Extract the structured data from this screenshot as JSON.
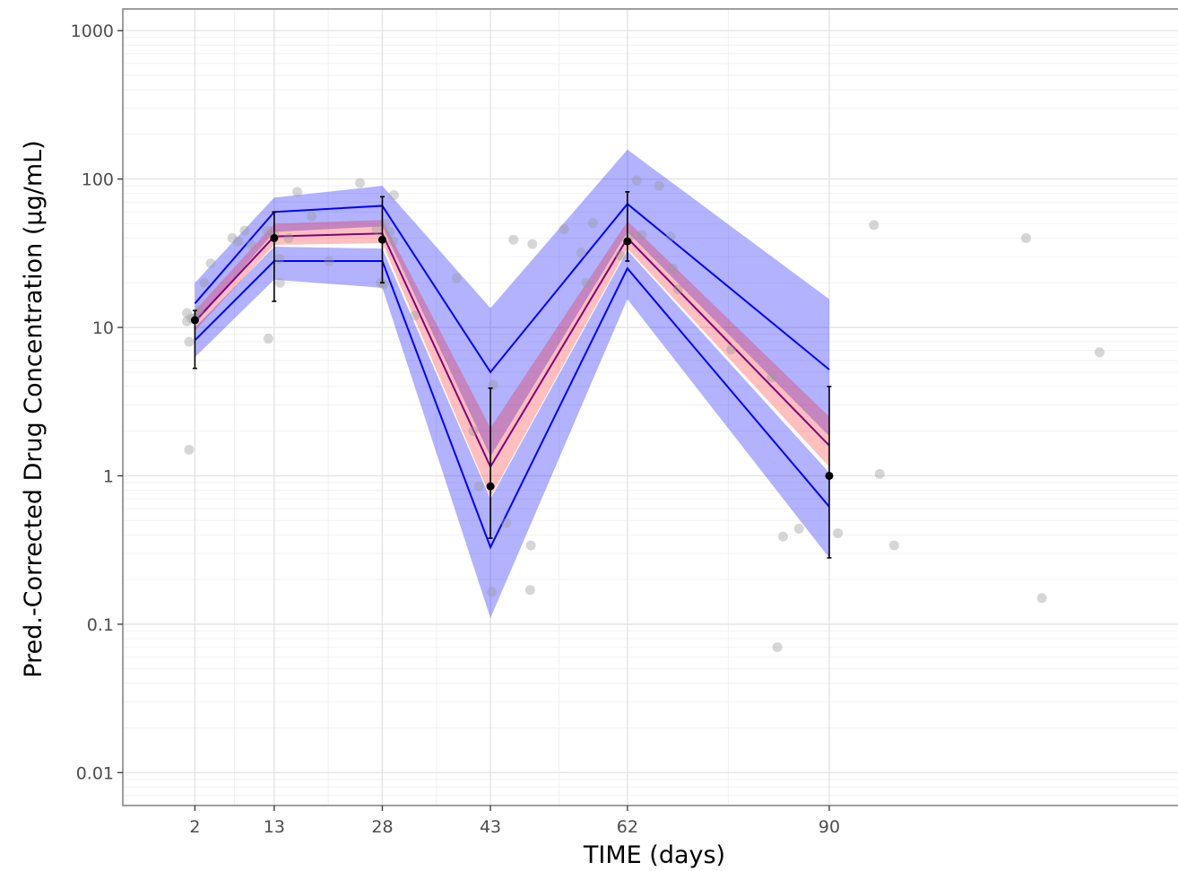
{
  "chart_data": {
    "type": "line",
    "title": "",
    "xlabel": "TIME (days)",
    "ylabel": "Pred.-Corrected Drug Concentration (μg/mL)",
    "y_scale": "log10",
    "ylim": [
      0.006,
      1400
    ],
    "xlim": [
      -8,
      140
    ],
    "x_ticks": [
      2,
      13,
      28,
      43,
      62,
      90
    ],
    "x_tick_labels": [
      "2",
      "13",
      "28",
      "43",
      "62",
      "90"
    ],
    "y_ticks": [
      0.01,
      0.1,
      1,
      10,
      100,
      1000
    ],
    "y_tick_labels": [
      "0.01",
      "0.1",
      "1",
      "10",
      "100",
      "1000"
    ],
    "grid": true,
    "x_bins": [
      2,
      13,
      28,
      43,
      62,
      90
    ],
    "observed_points": [
      [
        0.9,
        11
      ],
      [
        0.9,
        12.5
      ],
      [
        1.2,
        8
      ],
      [
        1.2,
        1.5
      ],
      [
        1.5,
        11.5
      ],
      [
        2,
        11.6
      ],
      [
        2.6,
        13
      ],
      [
        3.3,
        20
      ],
      [
        4.2,
        27
      ],
      [
        7.2,
        40
      ],
      [
        8,
        38
      ],
      [
        8.9,
        45
      ],
      [
        9.8,
        36
      ],
      [
        12,
        45
      ],
      [
        12.2,
        8.4
      ],
      [
        13,
        42
      ],
      [
        13.7,
        29
      ],
      [
        13.8,
        20
      ],
      [
        15,
        40
      ],
      [
        16.2,
        82
      ],
      [
        18.2,
        56
      ],
      [
        20.6,
        28
      ],
      [
        24.9,
        94
      ],
      [
        27.2,
        46
      ],
      [
        27.8,
        20
      ],
      [
        28.2,
        19.5
      ],
      [
        28.4,
        50
      ],
      [
        29,
        44
      ],
      [
        29.5,
        38
      ],
      [
        29.6,
        78
      ],
      [
        32.5,
        12
      ],
      [
        38.3,
        21.5
      ],
      [
        40.6,
        2
      ],
      [
        41.4,
        0.85
      ],
      [
        43.2,
        0.165
      ],
      [
        43.4,
        4.1
      ],
      [
        45.2,
        0.48
      ],
      [
        46.2,
        39
      ],
      [
        48.5,
        0.17
      ],
      [
        48.6,
        0.34
      ],
      [
        48.8,
        36.5
      ],
      [
        53.2,
        46
      ],
      [
        55.6,
        32
      ],
      [
        56.3,
        20
      ],
      [
        57.2,
        50.5
      ],
      [
        61,
        30.5
      ],
      [
        62.3,
        41
      ],
      [
        63.3,
        98
      ],
      [
        64,
        42
      ],
      [
        66.4,
        90
      ],
      [
        68,
        41
      ],
      [
        68.3,
        25
      ],
      [
        69,
        18
      ],
      [
        76.4,
        7.1
      ],
      [
        82,
        4.6
      ],
      [
        82.8,
        0.07
      ],
      [
        83.6,
        0.39
      ],
      [
        85.8,
        0.44
      ],
      [
        91.2,
        0.41
      ],
      [
        96.2,
        49
      ],
      [
        97,
        1.03
      ],
      [
        99,
        0.34
      ],
      [
        117.3,
        40
      ],
      [
        119.5,
        0.15
      ],
      [
        127.5,
        6.8
      ]
    ],
    "observed_median": [
      11.2,
      40,
      39,
      0.85,
      38,
      1.0
    ],
    "observed_error_bars": [
      [
        5.3,
        13
      ],
      [
        15,
        60
      ],
      [
        20,
        76
      ],
      [
        0.38,
        3.9
      ],
      [
        28,
        82
      ],
      [
        0.28,
        4.0
      ]
    ],
    "series": [
      {
        "name": "",
        "role": "simulated upper percentile",
        "color": "#0000ff",
        "values": [
          14.5,
          60,
          66,
          5,
          68,
          5.2
        ]
      },
      {
        "name": "",
        "role": "simulated median",
        "color": "#800080",
        "values": [
          11,
          41,
          43,
          1.15,
          40,
          1.6
        ]
      },
      {
        "name": "",
        "role": "simulated lower percentile",
        "color": "#0000ff",
        "values": [
          8.2,
          28,
          28,
          0.33,
          25,
          0.62
        ]
      }
    ],
    "prediction_intervals": [
      {
        "role": "upper percentile CI",
        "color": "#0000ff",
        "opacity": 0.3,
        "lower": [
          10.5,
          44,
          48,
          1.35,
          44,
          1.85
        ],
        "upper": [
          20,
          75,
          90,
          13.5,
          158,
          15.5
        ]
      },
      {
        "role": "median CI",
        "color": "#ff0000",
        "opacity": 0.25,
        "lower": [
          9.5,
          36,
          37,
          0.72,
          34,
          1.15
        ],
        "upper": [
          13,
          50,
          53,
          2.1,
          52,
          2.5
        ]
      },
      {
        "role": "lower percentile CI",
        "color": "#0000ff",
        "opacity": 0.3,
        "lower": [
          6.3,
          21,
          18.5,
          0.11,
          15.5,
          0.28
        ],
        "upper": [
          10,
          35,
          34,
          0.7,
          33,
          1.05
        ]
      }
    ],
    "colors": {
      "observed_points": "#999999",
      "observed_median": "#000000",
      "panel_border": "#7f7f7f",
      "grid": "#ebebeb"
    }
  }
}
